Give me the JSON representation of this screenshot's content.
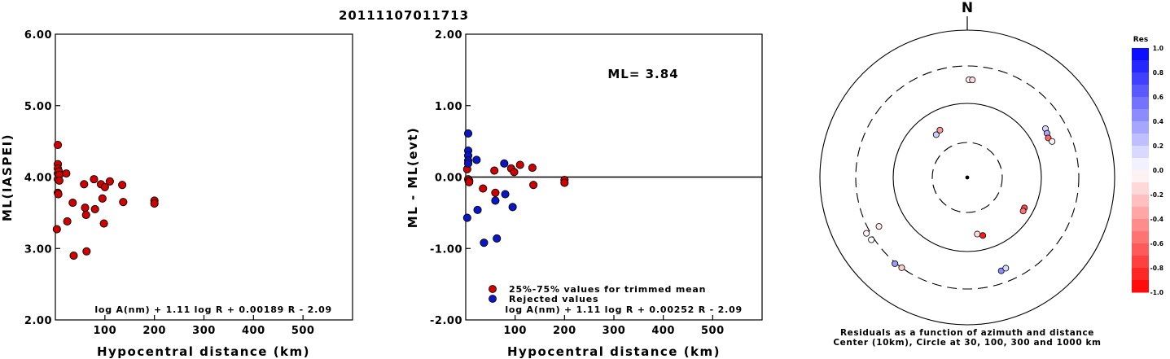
{
  "title": "20111107011713",
  "colors": {
    "trimmed": "#d00000",
    "rejected": "#0a17c8",
    "residual_positive": "#0000ff",
    "residual_negative": "#ff0000"
  },
  "chart_data": [
    {
      "type": "scatter",
      "ylabel": "ML(IASPEI)",
      "xlabel": "Hypocentral distance (km)",
      "xlim": [
        0,
        600
      ],
      "ylim": [
        2.0,
        6.0
      ],
      "xticks": [
        "100",
        "200",
        "300",
        "400",
        "500"
      ],
      "yticks": [
        "2.00",
        "3.00",
        "4.00",
        "5.00",
        "6.00"
      ],
      "annotation": "log A(nm) + 1.11 log R + 0.00189 R - 2.09",
      "series": [
        {
          "color": "#d00000",
          "points": [
            [
              3,
              3.27
            ],
            [
              5,
              4.45
            ],
            [
              5,
              4.18
            ],
            [
              5,
              4.12
            ],
            [
              5,
              4.05
            ],
            [
              5,
              3.97
            ],
            [
              5,
              3.78
            ],
            [
              6,
              3.76
            ],
            [
              7,
              4.08
            ],
            [
              8,
              4.03
            ],
            [
              8,
              3.95
            ],
            [
              22,
              4.05
            ],
            [
              24,
              3.38
            ],
            [
              35,
              3.64
            ],
            [
              37,
              2.9
            ],
            [
              58,
              3.9
            ],
            [
              60,
              3.57
            ],
            [
              62,
              3.47
            ],
            [
              63,
              2.96
            ],
            [
              78,
              3.97
            ],
            [
              80,
              3.55
            ],
            [
              92,
              3.9
            ],
            [
              95,
              3.7
            ],
            [
              98,
              3.35
            ],
            [
              100,
              3.86
            ],
            [
              110,
              3.94
            ],
            [
              135,
              3.89
            ],
            [
              137,
              3.65
            ],
            [
              200,
              3.67
            ],
            [
              200,
              3.63
            ]
          ]
        }
      ]
    },
    {
      "type": "scatter",
      "ylabel": "ML - ML(evt)",
      "xlabel": "Hypocentral distance (km)",
      "xlim": [
        0,
        600
      ],
      "ylim": [
        -2.0,
        2.0
      ],
      "xticks": [
        "100",
        "200",
        "300",
        "400",
        "500"
      ],
      "yticks": [
        "-2.00",
        "-1.00",
        "0.00",
        "1.00",
        "2.00"
      ],
      "reference_line": 0,
      "ml_label": "ML= 3.84",
      "annotation": "log A(nm) + 1.11 log R + 0.00252 R - 2.09",
      "series": [
        {
          "name": "25%-75% values for trimmed mean",
          "color": "#d00000",
          "points": [
            [
              3,
              0.11
            ],
            [
              5,
              -0.03
            ],
            [
              6,
              -0.06
            ],
            [
              7,
              -0.05
            ],
            [
              7,
              -0.07
            ],
            [
              35,
              -0.16
            ],
            [
              58,
              0.09
            ],
            [
              60,
              -0.22
            ],
            [
              92,
              0.12
            ],
            [
              98,
              0.07
            ],
            [
              110,
              0.17
            ],
            [
              135,
              0.13
            ],
            [
              137,
              -0.11
            ],
            [
              200,
              -0.04
            ],
            [
              200,
              -0.08
            ]
          ]
        },
        {
          "name": "Rejected values",
          "color": "#0a17c8",
          "points": [
            [
              3,
              -0.57
            ],
            [
              5,
              0.61
            ],
            [
              5,
              0.37
            ],
            [
              5,
              0.3
            ],
            [
              5,
              0.23
            ],
            [
              5,
              0.19
            ],
            [
              22,
              0.24
            ],
            [
              24,
              -0.46
            ],
            [
              37,
              -0.92
            ],
            [
              60,
              -0.33
            ],
            [
              63,
              -0.86
            ],
            [
              78,
              0.19
            ],
            [
              80,
              -0.24
            ],
            [
              95,
              -0.42
            ]
          ]
        }
      ]
    },
    {
      "type": "polar-scatter",
      "north_label": "N",
      "rings_km": [
        10,
        30,
        100,
        300,
        1000
      ],
      "dashed_rings_km": [
        30,
        300
      ],
      "caption": [
        "Residuals as a function of azimuth and distance",
        "Center (10km), Circle at 30, 100, 300 and 1000 km"
      ],
      "points": [
        {
          "azimuth": 1,
          "distance": 200,
          "res": -0.05
        },
        {
          "azimuth": 3,
          "distance": 200,
          "res": -0.15
        },
        {
          "azimuth": 324,
          "distance": 52,
          "res": 0.2
        },
        {
          "azimuth": 330,
          "distance": 55,
          "res": -0.4
        },
        {
          "azimuth": 58,
          "distance": 170,
          "res": 0.15
        },
        {
          "azimuth": 61,
          "distance": 165,
          "res": 0.35
        },
        {
          "azimuth": 64,
          "distance": 160,
          "res": -0.6
        },
        {
          "azimuth": 67,
          "distance": 170,
          "res": -0.05
        },
        {
          "azimuth": 241,
          "distance": 220,
          "res": -0.1
        },
        {
          "azimuth": 237,
          "distance": 330,
          "res": 0.0
        },
        {
          "azimuth": 241,
          "distance": 340,
          "res": -0.05
        },
        {
          "azimuth": 220,
          "distance": 310,
          "res": 0.4
        },
        {
          "azimuth": 216,
          "distance": 300,
          "res": -0.2
        },
        {
          "azimuth": 170,
          "distance": 60,
          "res": -0.15
        },
        {
          "azimuth": 165,
          "distance": 65,
          "res": -0.9
        },
        {
          "azimuth": 118,
          "distance": 75,
          "res": -0.7
        },
        {
          "azimuth": 121,
          "distance": 76,
          "res": -0.55
        },
        {
          "azimuth": 160,
          "distance": 210,
          "res": 0.45
        },
        {
          "azimuth": 157,
          "distance": 205,
          "res": 0.15
        }
      ]
    }
  ],
  "colorbar": {
    "title": "Res",
    "labels": [
      "1.0",
      "0.8",
      "0.6",
      "0.4",
      "0.2",
      "0.0",
      "-0.2",
      "-0.4",
      "-0.6",
      "-0.8",
      "-1.0"
    ]
  }
}
